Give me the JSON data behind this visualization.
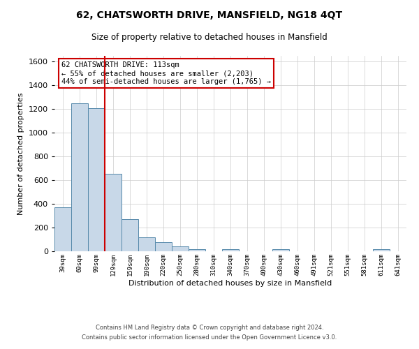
{
  "title": "62, CHATSWORTH DRIVE, MANSFIELD, NG18 4QT",
  "subtitle": "Size of property relative to detached houses in Mansfield",
  "xlabel": "Distribution of detached houses by size in Mansfield",
  "ylabel": "Number of detached properties",
  "categories": [
    "39sqm",
    "69sqm",
    "99sqm",
    "129sqm",
    "159sqm",
    "190sqm",
    "220sqm",
    "250sqm",
    "280sqm",
    "310sqm",
    "340sqm",
    "370sqm",
    "400sqm",
    "430sqm",
    "460sqm",
    "491sqm",
    "521sqm",
    "551sqm",
    "581sqm",
    "611sqm",
    "641sqm"
  ],
  "values": [
    370,
    1250,
    1210,
    655,
    270,
    120,
    75,
    40,
    20,
    0,
    20,
    0,
    0,
    15,
    0,
    0,
    0,
    0,
    0,
    15,
    0
  ],
  "bar_color": "#c8d8e8",
  "bar_edge_color": "#5588aa",
  "vline_color": "#cc0000",
  "annotation_title": "62 CHATSWORTH DRIVE: 113sqm",
  "annotation_line1": "← 55% of detached houses are smaller (2,203)",
  "annotation_line2": "44% of semi-detached houses are larger (1,765) →",
  "annotation_box_color": "#ffffff",
  "annotation_box_edge": "#cc0000",
  "ylim": [
    0,
    1650
  ],
  "yticks": [
    0,
    200,
    400,
    600,
    800,
    1000,
    1200,
    1400,
    1600
  ],
  "footer1": "Contains HM Land Registry data © Crown copyright and database right 2024.",
  "footer2": "Contains public sector information licensed under the Open Government Licence v3.0.",
  "background_color": "#ffffff",
  "grid_color": "#cccccc"
}
